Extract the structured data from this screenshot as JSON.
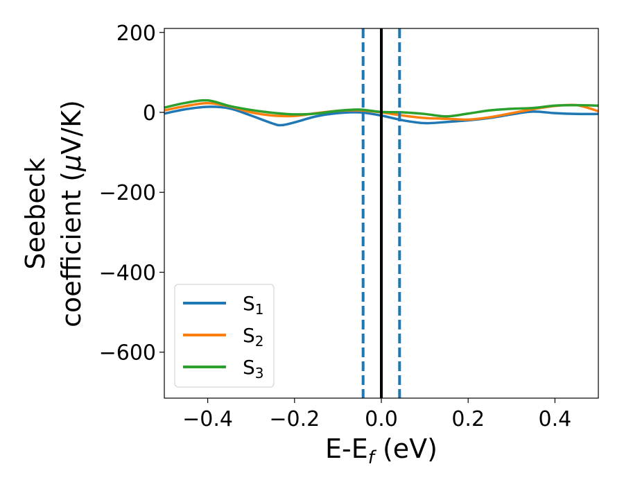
{
  "chart_data": {
    "type": "line",
    "title": "",
    "xlabel": "E-E",
    "xlabel_sub": "f",
    "xlabel_unit": " (eV)",
    "ylabel_line1": "Seebeck",
    "ylabel_line2": "coefficient  (",
    "ylabel_mu": "μ",
    "ylabel_unit": "V/K)",
    "xlim": [
      -0.5,
      0.5
    ],
    "ylim": [
      -715,
      210
    ],
    "xticks": [
      -0.4,
      -0.2,
      0.0,
      0.2,
      0.4
    ],
    "xtick_labels": [
      "−0.4",
      "−0.2",
      "0.0",
      "0.2",
      "0.4"
    ],
    "yticks": [
      200,
      0,
      -200,
      -400,
      -600
    ],
    "ytick_labels": [
      "200",
      "0",
      "−200",
      "−400",
      "−600"
    ],
    "grid": false,
    "legend_position": "lower-left",
    "vlines": [
      {
        "x": 0.0,
        "style": "solid",
        "color": "#000000"
      },
      {
        "x": -0.042,
        "style": "dashed",
        "color": "#1f77b4"
      },
      {
        "x": 0.042,
        "style": "dashed",
        "color": "#1f77b4"
      }
    ],
    "series": [
      {
        "name": "S",
        "sub": "1",
        "color": "#1f77b4",
        "x": [
          -0.5,
          -0.45,
          -0.4,
          -0.35,
          -0.3,
          -0.25,
          -0.23,
          -0.2,
          -0.15,
          -0.1,
          -0.05,
          0.0,
          0.05,
          0.1,
          0.15,
          0.2,
          0.25,
          0.3,
          0.35,
          0.4,
          0.45,
          0.5
        ],
        "y": [
          -3,
          8,
          14,
          10,
          -8,
          -28,
          -32,
          -25,
          -10,
          -2,
          0,
          -8,
          -20,
          -27,
          -24,
          -20,
          -14,
          -5,
          2,
          -2,
          -4,
          -4
        ]
      },
      {
        "name": "S",
        "sub": "2",
        "color": "#ff7f0e",
        "x": [
          -0.5,
          -0.45,
          -0.4,
          -0.35,
          -0.3,
          -0.25,
          -0.2,
          -0.15,
          -0.1,
          -0.05,
          0.0,
          0.05,
          0.1,
          0.15,
          0.2,
          0.25,
          0.3,
          0.35,
          0.4,
          0.45,
          0.5
        ],
        "y": [
          5,
          16,
          23,
          15,
          0,
          -8,
          -9,
          -2,
          4,
          5,
          0,
          -8,
          -14,
          -16,
          -18,
          -12,
          -2,
          8,
          16,
          18,
          3
        ]
      },
      {
        "name": "S",
        "sub": "3",
        "color": "#2ca02c",
        "x": [
          -0.5,
          -0.45,
          -0.4,
          -0.35,
          -0.3,
          -0.25,
          -0.2,
          -0.15,
          -0.1,
          -0.05,
          0.0,
          0.05,
          0.1,
          0.15,
          0.2,
          0.25,
          0.3,
          0.35,
          0.4,
          0.45,
          0.5
        ],
        "y": [
          12,
          24,
          30,
          16,
          6,
          -1,
          -5,
          -3,
          4,
          7,
          1,
          0,
          -4,
          -10,
          -3,
          5,
          9,
          11,
          17,
          18,
          17
        ]
      }
    ]
  }
}
